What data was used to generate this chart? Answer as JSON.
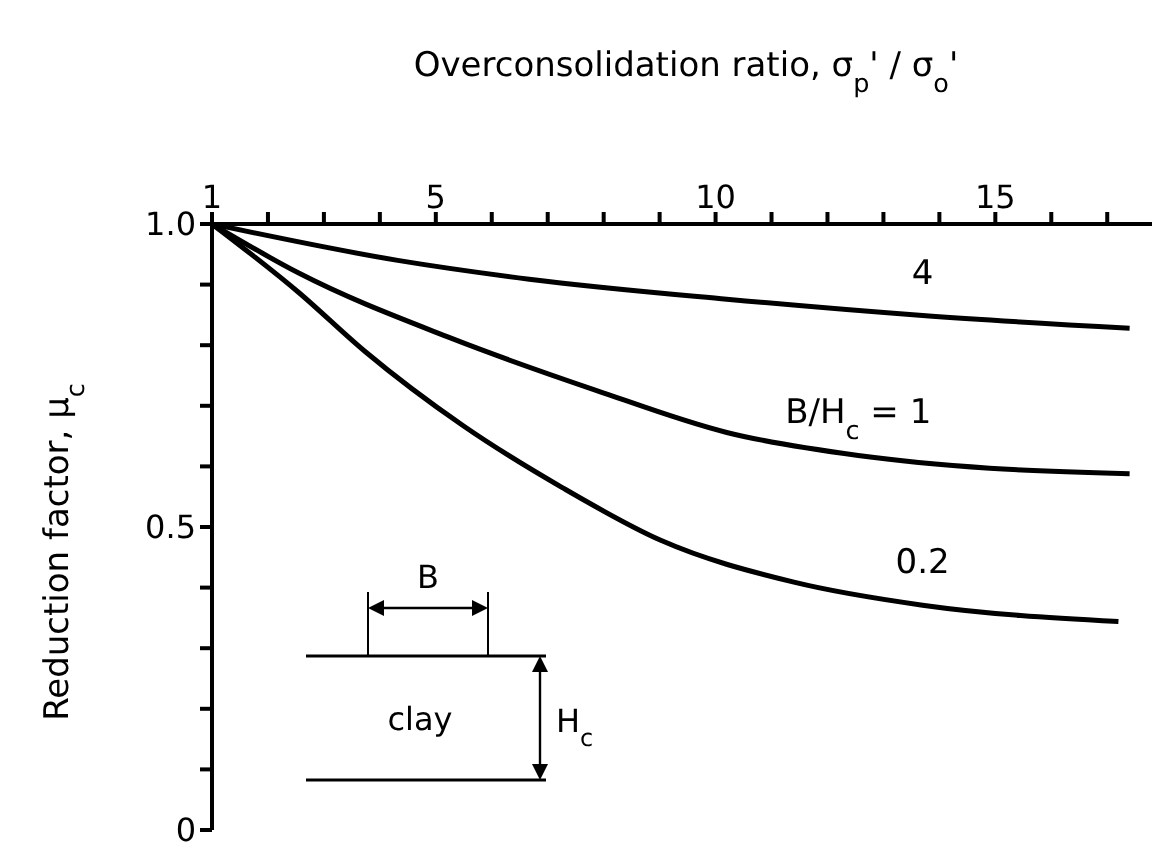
{
  "chart_data": {
    "type": "line",
    "xlabel": "Overconsolidation ratio, σ$_{p}$' / σ$_{o}$'",
    "ylabel": "Reduction factor, μ$_{c}$",
    "xlim": [
      1,
      17.8
    ],
    "ylim": [
      0,
      1
    ],
    "xticks": [
      1,
      {
        "value": 2,
        "label": null
      },
      {
        "value": 3,
        "label": null
      },
      {
        "value": 4,
        "label": null
      },
      5,
      {
        "value": 6,
        "label": null
      },
      {
        "value": 7,
        "label": null
      },
      {
        "value": 8,
        "label": null
      },
      {
        "value": 9,
        "label": null
      },
      10,
      {
        "value": 11,
        "label": null
      },
      {
        "value": 12,
        "label": null
      },
      {
        "value": 13,
        "label": null
      },
      {
        "value": 14,
        "label": null
      },
      15,
      {
        "value": 16,
        "label": null
      },
      {
        "value": 17,
        "label": null
      }
    ],
    "yticks": [
      0,
      {
        "value": 0.1,
        "label": null
      },
      {
        "value": 0.2,
        "label": null
      },
      {
        "value": 0.3,
        "label": null
      },
      {
        "value": 0.4,
        "label": null
      },
      0.5,
      {
        "value": 0.6,
        "label": null
      },
      {
        "value": 0.7,
        "label": null
      },
      {
        "value": 0.8,
        "label": null
      },
      {
        "value": 0.9,
        "label": null
      },
      {
        "value": 1,
        "label": "1.0"
      }
    ],
    "marker": "none",
    "line_style": "solid",
    "series": [
      {
        "name": "4",
        "color": "#000000",
        "x": [
          1,
          4.32,
          6.67,
          10.2,
          13.7,
          17.4
        ],
        "values": [
          1,
          0.94,
          0.909,
          0.876,
          0.849,
          0.828
        ]
      },
      {
        "name": "B/H$_{c}$ = 1",
        "color": "#000000",
        "x": [
          1,
          2.55,
          5.26,
          7.85,
          10.2,
          12.55,
          14.9,
          17.4
        ],
        "values": [
          1,
          0.919,
          0.812,
          0.726,
          0.656,
          0.618,
          0.597,
          0.588
        ]
      },
      {
        "name": "0.2",
        "color": "#000000",
        "x": [
          1,
          2.55,
          3.73,
          5.49,
          7.26,
          9.02,
          11.4,
          13.7,
          17.2
        ],
        "values": [
          1,
          0.887,
          0.79,
          0.667,
          0.565,
          0.478,
          0.409,
          0.371,
          0.344
        ]
      }
    ],
    "annotations": [
      "B",
      "clay",
      "H$_{c}$"
    ]
  }
}
